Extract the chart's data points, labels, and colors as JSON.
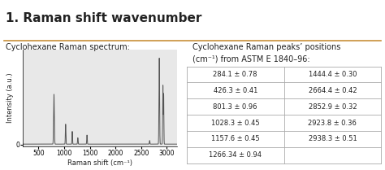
{
  "title": "1. Raman shift wavenumber",
  "title_separator_color": "#c8903a",
  "spectrum_title": "Cyclohexane Raman spectrum:",
  "table_title_line1": "Cyclohexane Raman peaks’ positions",
  "table_title_line2": "(cm⁻¹) from ASTM E 1840–96:",
  "xlabel": "Raman shift (cm⁻¹)",
  "ylabel": "Intensity (a.u.)",
  "xmin": 200,
  "xmax": 3200,
  "xticks": [
    500,
    1000,
    1500,
    2000,
    2500,
    3000
  ],
  "peaks": [
    801.3,
    1028.3,
    1157.6,
    1266.34,
    1444.4,
    2664.4,
    2852.9,
    2923.8,
    2938.3
  ],
  "peak_heights": [
    0.55,
    0.22,
    0.14,
    0.07,
    0.1,
    0.04,
    0.95,
    0.65,
    0.55
  ],
  "peak_widths": [
    7,
    5,
    5,
    5,
    5,
    5,
    6,
    5,
    4
  ],
  "table_left": [
    "284.1 ± 0.78",
    "426.3 ± 0.41",
    "801.3 ± 0.96",
    "1028.3 ± 0.45",
    "1157.6 ± 0.45",
    "1266.34 ± 0.94"
  ],
  "table_right": [
    "1444.4 ± 0.30",
    "2664.4 ± 0.42",
    "2852.9 ± 0.32",
    "2923.8 ± 0.36",
    "2938.3 ± 0.51",
    ""
  ],
  "background_color": "#ffffff",
  "plot_bg": "#e8e8e8",
  "line_color": "#555555",
  "table_border_color": "#aaaaaa",
  "font_color": "#222222",
  "title_fontsize": 11,
  "spectrum_title_fontsize": 7,
  "table_title_fontsize": 7,
  "axis_label_fontsize": 6,
  "tick_fontsize": 5.5,
  "table_fontsize": 6.0
}
